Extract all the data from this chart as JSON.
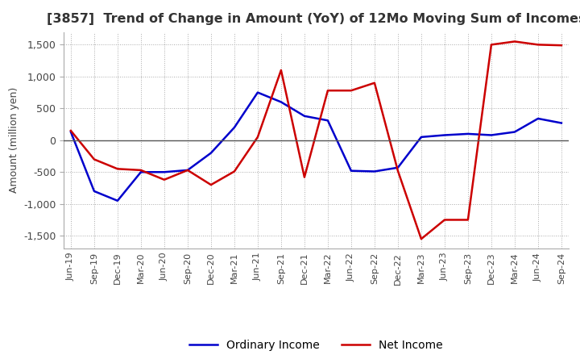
{
  "title": "[3857]  Trend of Change in Amount (YoY) of 12Mo Moving Sum of Incomes",
  "ylabel": "Amount (million yen)",
  "ylim": [
    -1700,
    1700
  ],
  "yticks": [
    -1500,
    -1000,
    -500,
    0,
    500,
    1000,
    1500
  ],
  "x_labels": [
    "Jun-19",
    "Sep-19",
    "Dec-19",
    "Mar-20",
    "Jun-20",
    "Sep-20",
    "Dec-20",
    "Mar-21",
    "Jun-21",
    "Sep-21",
    "Dec-21",
    "Mar-22",
    "Jun-22",
    "Sep-22",
    "Dec-22",
    "Mar-23",
    "Jun-23",
    "Sep-23",
    "Dec-23",
    "Mar-24",
    "Jun-24",
    "Sep-24"
  ],
  "ordinary_income": [
    130,
    -800,
    -950,
    -500,
    -500,
    -470,
    -200,
    200,
    750,
    600,
    380,
    310,
    -480,
    -490,
    -430,
    50,
    80,
    100,
    80,
    130,
    340,
    270
  ],
  "net_income": [
    150,
    -300,
    -450,
    -470,
    -620,
    -470,
    -700,
    -490,
    50,
    1100,
    -580,
    780,
    780,
    900,
    -480,
    -1550,
    -1250,
    -1250,
    1500,
    1550,
    1500,
    1490
  ],
  "ordinary_color": "#0000cc",
  "net_color": "#cc0000",
  "background_color": "#ffffff",
  "grid_color": "#aaaaaa",
  "title_color": "#333333",
  "legend_ordinary": "Ordinary Income",
  "legend_net": "Net Income"
}
